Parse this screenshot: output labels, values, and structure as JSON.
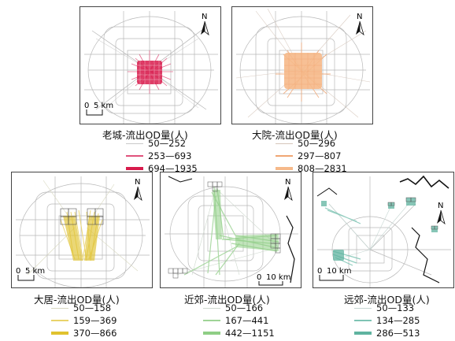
{
  "panels": [
    {
      "caption": "老城-流出OD量(人)",
      "north": "N",
      "scale": {
        "zero": "0",
        "label": "5 km"
      },
      "legend": [
        {
          "range": "50—252",
          "color": "#c9c9c9"
        },
        {
          "range": "253—693",
          "color": "#e0527c"
        },
        {
          "range": "694—1935",
          "color": "#d81b4c"
        }
      ]
    },
    {
      "caption": "大院-流出OD量(人)",
      "north": "N",
      "scale": {
        "zero": "",
        "label": ""
      },
      "legend": [
        {
          "range": "50—296",
          "color": "#d6c6bb"
        },
        {
          "range": "297—807",
          "color": "#f0a673"
        },
        {
          "range": "808—2831",
          "color": "#f6b98a"
        }
      ]
    },
    {
      "caption": "大居-流出OD量(人)",
      "north": "N",
      "scale": {
        "zero": "0",
        "label": "5 km"
      },
      "legend": [
        {
          "range": "50—158",
          "color": "#d8d8c0"
        },
        {
          "range": "159—369",
          "color": "#e9d36a"
        },
        {
          "range": "370—866",
          "color": "#e0c22e"
        }
      ]
    },
    {
      "caption": "近郊-流出OD量(人)",
      "north": "N",
      "scale": {
        "zero": "0",
        "label": "10 km"
      },
      "legend": [
        {
          "range": "50—166",
          "color": "#cfd9cf"
        },
        {
          "range": "167—441",
          "color": "#9fd497"
        },
        {
          "range": "442—1151",
          "color": "#8fce85"
        }
      ]
    },
    {
      "caption": "远郊-流出OD量(人)",
      "north": "N",
      "scale": {
        "zero": "0",
        "label": "10 km"
      },
      "legend": [
        {
          "range": "50—133",
          "color": "#c6d6d2"
        },
        {
          "range": "134—285",
          "color": "#7fc4b4"
        },
        {
          "range": "286—513",
          "color": "#5fb3a0"
        }
      ]
    }
  ]
}
